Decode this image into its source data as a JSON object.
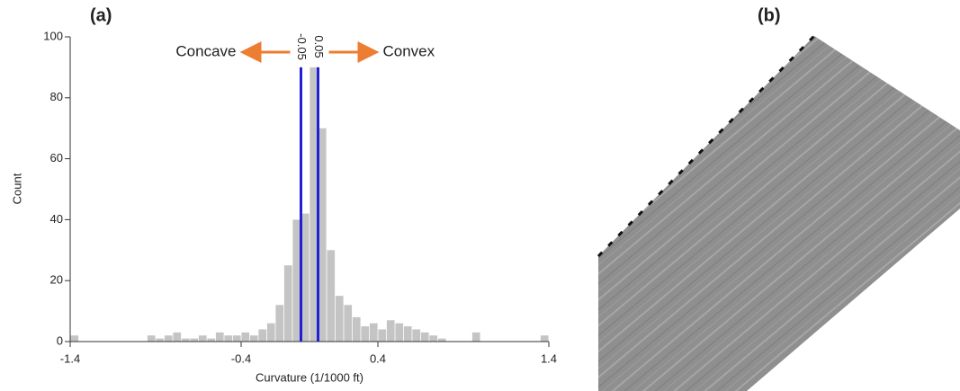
{
  "panel_labels": [
    "(a)",
    "(b)"
  ],
  "chart_data": {
    "type": "histogram",
    "ylabel": "Count",
    "xlabel": "Curvature (1/1000 ft)",
    "bins": [
      -1.4,
      -1.35,
      -1.3,
      -1.25,
      -1.2,
      -1.15,
      -1.1,
      -1.05,
      -1,
      -0.95,
      -0.9,
      -0.85,
      -0.8,
      -0.75,
      -0.7,
      -0.65,
      -0.6,
      -0.55,
      -0.5,
      -0.45,
      -0.4,
      -0.35,
      -0.3,
      -0.25,
      -0.2,
      -0.15,
      -0.1,
      -0.05,
      0,
      0.05,
      0.1,
      0.15,
      0.2,
      0.25,
      0.3,
      0.35,
      0.4,
      0.45,
      0.5,
      0.55,
      0.6,
      0.65,
      0.7,
      0.75,
      0.8,
      0.85,
      0.9,
      0.95,
      1,
      1.05,
      1.1,
      1.15,
      1.2,
      1.25,
      1.3,
      1.35,
      1.4
    ],
    "values": [
      2,
      0,
      0,
      0,
      0,
      0,
      0,
      0,
      0,
      2,
      1,
      2,
      3,
      1,
      1,
      2,
      1,
      3,
      2,
      2,
      3,
      2,
      4,
      6,
      12,
      25,
      40,
      42,
      90,
      70,
      30,
      15,
      12,
      8,
      5,
      6,
      4,
      7,
      6,
      5,
      4,
      3,
      2,
      1,
      0,
      0,
      0,
      3,
      0,
      0,
      0,
      0,
      0,
      0,
      0,
      2
    ],
    "color": "#c4c4c4",
    "xlim": [
      -1.4,
      1.4
    ],
    "xticks": [
      -1.4,
      -0.4,
      0.4,
      1.4
    ],
    "ylim": [
      0,
      100
    ],
    "yticks": [
      0,
      20,
      40,
      60,
      80,
      100
    ],
    "vlines": [
      -0.05,
      0.05
    ],
    "vline_color": "#1f1fd6",
    "annotations": [
      "Concave",
      "Convex"
    ],
    "arrow_color": "#ed7d31"
  }
}
